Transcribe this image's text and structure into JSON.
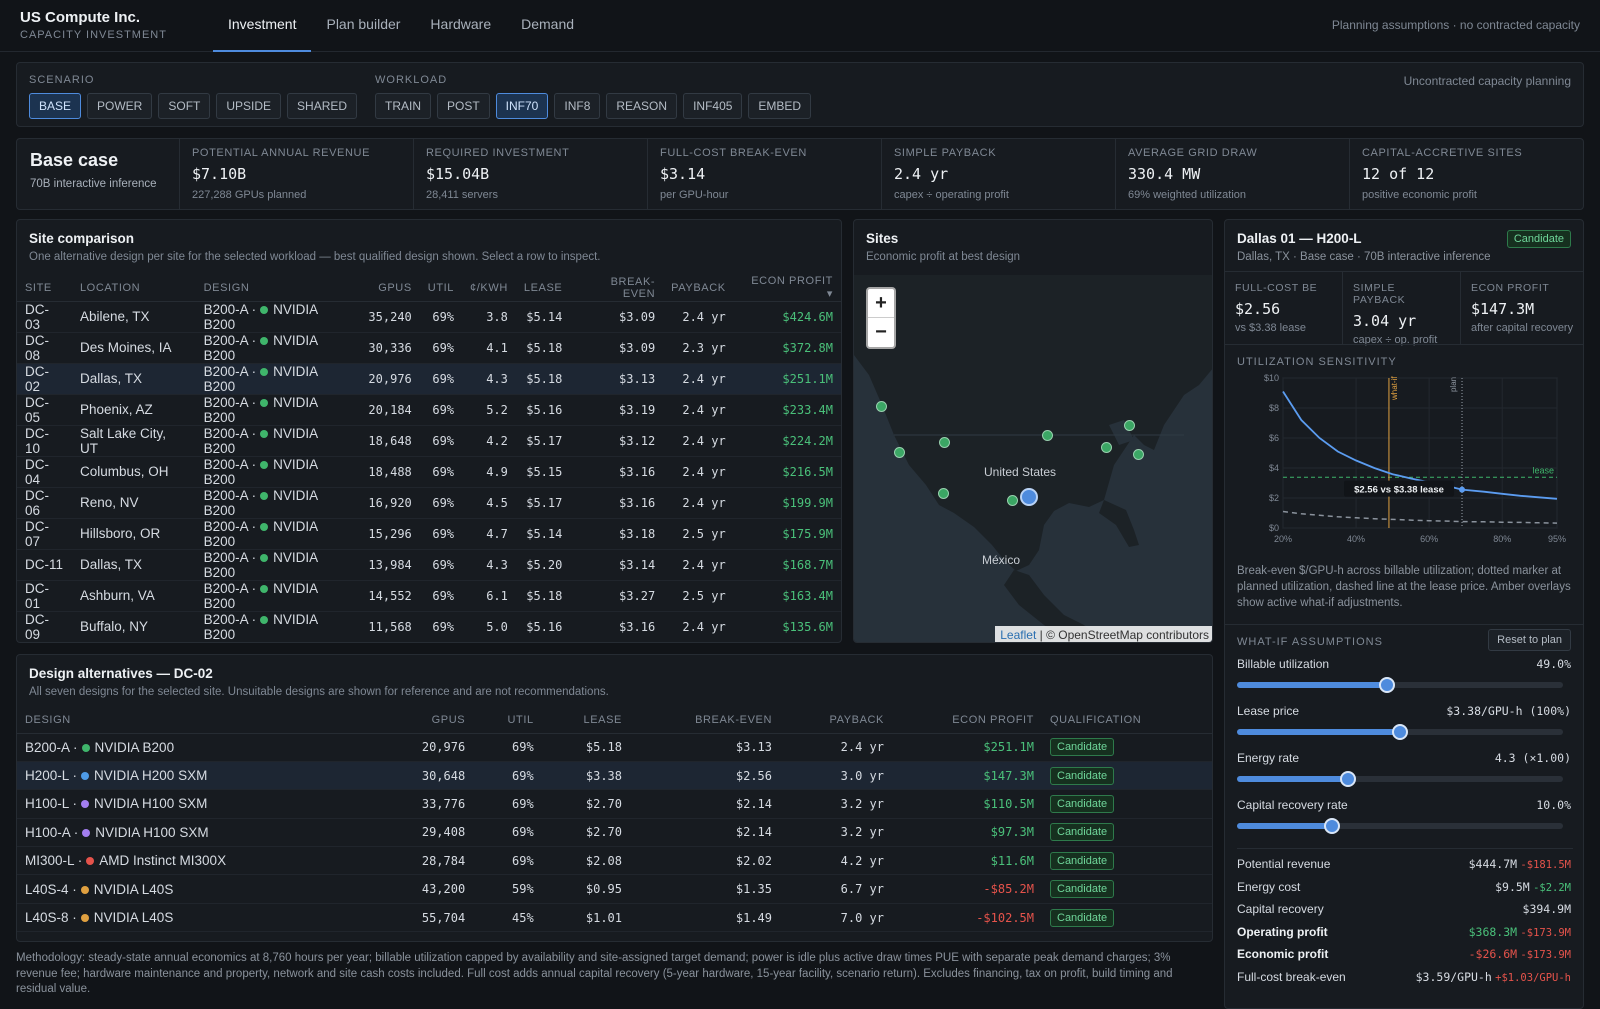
{
  "header": {
    "title": "US Compute Inc.",
    "subtitle": "CAPACITY INVESTMENT",
    "tabs": [
      "Investment",
      "Plan builder",
      "Hardware",
      "Demand"
    ],
    "note": "Planning assumptions · no contracted capacity"
  },
  "scenario": {
    "label": "SCENARIO",
    "options": [
      "BASE",
      "POWER",
      "SOFT",
      "UPSIDE",
      "SHARED"
    ],
    "selected": "BASE"
  },
  "workload": {
    "label": "WORKLOAD",
    "options": [
      "TRAIN",
      "POST",
      "INF70",
      "INF8",
      "REASON",
      "INF405",
      "EMBED"
    ],
    "selected": "INF70",
    "note": "Uncontracted capacity planning"
  },
  "summary": {
    "title": "Base case",
    "subtitle": "70B interactive inference"
  },
  "kpis": [
    {
      "label": "POTENTIAL ANNUAL REVENUE",
      "value": "$7.10B",
      "detail": "227,288 GPUs planned"
    },
    {
      "label": "REQUIRED INVESTMENT",
      "value": "$15.04B",
      "detail": "28,411 servers"
    },
    {
      "label": "FULL-COST BREAK-EVEN",
      "value": "$3.14",
      "detail": "per GPU-hour"
    },
    {
      "label": "SIMPLE PAYBACK",
      "value": "2.4 yr",
      "detail": "capex ÷ operating profit"
    },
    {
      "label": "AVERAGE GRID DRAW",
      "value": "330.4 MW",
      "detail": "69% weighted utilization"
    },
    {
      "label": "CAPITAL-ACCRETIVE SITES",
      "value": "12 of 12",
      "detail": "positive economic profit"
    }
  ],
  "sites_table": {
    "title": "Site comparison",
    "subtitle": "One alternative design per site for the selected workload — best qualified design shown. Select a row to inspect.",
    "columns": [
      "SITE",
      "LOCATION",
      "DESIGN",
      "GPUS",
      "UTIL",
      "¢/KWH",
      "LEASE",
      "BREAK-EVEN",
      "PAYBACK",
      "ECON PROFIT ▾"
    ],
    "rows": [
      {
        "site": "DC-03",
        "location": "Abilene, TX",
        "design": "B200-A ·",
        "hw": "NVIDIA B200",
        "gpus": "35,240",
        "util": "69%",
        "kwh": "3.8",
        "lease": "$5.14",
        "be": "$3.09",
        "payback": "2.4 yr",
        "profit": "$424.6M"
      },
      {
        "site": "DC-08",
        "location": "Des Moines, IA",
        "design": "B200-A ·",
        "hw": "NVIDIA B200",
        "gpus": "30,336",
        "util": "69%",
        "kwh": "4.1",
        "lease": "$5.18",
        "be": "$3.09",
        "payback": "2.3 yr",
        "profit": "$372.8M"
      },
      {
        "site": "DC-02",
        "location": "Dallas, TX",
        "design": "B200-A ·",
        "hw": "NVIDIA B200",
        "gpus": "20,976",
        "util": "69%",
        "kwh": "4.3",
        "lease": "$5.18",
        "be": "$3.13",
        "payback": "2.4 yr",
        "profit": "$251.1M"
      },
      {
        "site": "DC-05",
        "location": "Phoenix, AZ",
        "design": "B200-A ·",
        "hw": "NVIDIA B200",
        "gpus": "20,184",
        "util": "69%",
        "kwh": "5.2",
        "lease": "$5.16",
        "be": "$3.19",
        "payback": "2.4 yr",
        "profit": "$233.4M"
      },
      {
        "site": "DC-10",
        "location": "Salt Lake City, UT",
        "design": "B200-A ·",
        "hw": "NVIDIA B200",
        "gpus": "18,648",
        "util": "69%",
        "kwh": "4.2",
        "lease": "$5.17",
        "be": "$3.12",
        "payback": "2.4 yr",
        "profit": "$224.2M"
      },
      {
        "site": "DC-04",
        "location": "Columbus, OH",
        "design": "B200-A ·",
        "hw": "NVIDIA B200",
        "gpus": "18,488",
        "util": "69%",
        "kwh": "4.9",
        "lease": "$5.15",
        "be": "$3.16",
        "payback": "2.4 yr",
        "profit": "$216.5M"
      },
      {
        "site": "DC-06",
        "location": "Reno, NV",
        "design": "B200-A ·",
        "hw": "NVIDIA B200",
        "gpus": "16,920",
        "util": "69%",
        "kwh": "4.5",
        "lease": "$5.17",
        "be": "$3.16",
        "payback": "2.4 yr",
        "profit": "$199.9M"
      },
      {
        "site": "DC-07",
        "location": "Hillsboro, OR",
        "design": "B200-A ·",
        "hw": "NVIDIA B200",
        "gpus": "15,296",
        "util": "69%",
        "kwh": "4.7",
        "lease": "$5.14",
        "be": "$3.18",
        "payback": "2.5 yr",
        "profit": "$175.9M"
      },
      {
        "site": "DC-11",
        "location": "Dallas, TX",
        "design": "B200-A ·",
        "hw": "NVIDIA B200",
        "gpus": "13,984",
        "util": "69%",
        "kwh": "4.3",
        "lease": "$5.20",
        "be": "$3.14",
        "payback": "2.4 yr",
        "profit": "$168.7M"
      },
      {
        "site": "DC-01",
        "location": "Ashburn, VA",
        "design": "B200-A ·",
        "hw": "NVIDIA B200",
        "gpus": "14,552",
        "util": "69%",
        "kwh": "6.1",
        "lease": "$5.18",
        "be": "$3.27",
        "payback": "2.5 yr",
        "profit": "$163.4M"
      },
      {
        "site": "DC-09",
        "location": "Buffalo, NY",
        "design": "B200-A ·",
        "hw": "NVIDIA B200",
        "gpus": "11,568",
        "util": "69%",
        "kwh": "5.0",
        "lease": "$5.16",
        "be": "$3.16",
        "payback": "2.4 yr",
        "profit": "$135.6M"
      },
      {
        "site": "DC-12",
        "location": "Columbus, OH",
        "design": "B200-A ·",
        "hw": "NVIDIA B200",
        "gpus": "11,096",
        "util": "69%",
        "kwh": "4.9",
        "lease": "$5.23",
        "be": "$3.16",
        "payback": "2.4 yr",
        "profit": "$134.4M"
      }
    ]
  },
  "map": {
    "title": "Sites",
    "subtitle": "Economic profit at best design",
    "label_us": "United States",
    "label_mx": "México",
    "zoom_in": "+",
    "zoom_out": "−",
    "attr_leaflet": "Leaflet",
    "attr_rest": "| © OpenStreetMap contributors"
  },
  "alternatives": {
    "title": "Design alternatives — DC-02",
    "subtitle": "All seven designs for the selected site. Unsuitable designs are shown for reference and are not recommendations.",
    "columns": [
      "DESIGN",
      "GPUS",
      "UTIL",
      "LEASE",
      "BREAK-EVEN",
      "PAYBACK",
      "ECON PROFIT",
      "QUALIFICATION"
    ],
    "rows": [
      {
        "design": "B200-A ·",
        "hw": "NVIDIA B200",
        "dot": "#3fb56b",
        "gpus": "20,976",
        "util": "69%",
        "lease": "$5.18",
        "be": "$3.13",
        "payback": "2.4 yr",
        "profit": "$251.1M",
        "neg": false,
        "q": "Candidate"
      },
      {
        "design": "H200-L ·",
        "hw": "NVIDIA H200 SXM",
        "dot": "#4e9be8",
        "gpus": "30,648",
        "util": "69%",
        "lease": "$3.38",
        "be": "$2.56",
        "payback": "3.0 yr",
        "profit": "$147.3M",
        "neg": false,
        "q": "Candidate"
      },
      {
        "design": "H100-L ·",
        "hw": "NVIDIA H100 SXM",
        "dot": "#a37ef0",
        "gpus": "33,776",
        "util": "69%",
        "lease": "$2.70",
        "be": "$2.14",
        "payback": "3.2 yr",
        "profit": "$110.5M",
        "neg": false,
        "q": "Candidate"
      },
      {
        "design": "H100-A ·",
        "hw": "NVIDIA H100 SXM",
        "dot": "#a37ef0",
        "gpus": "29,408",
        "util": "69%",
        "lease": "$2.70",
        "be": "$2.14",
        "payback": "3.2 yr",
        "profit": "$97.3M",
        "neg": false,
        "q": "Candidate"
      },
      {
        "design": "MI300-L ·",
        "hw": "AMD Instinct MI300X",
        "dot": "#e5534b",
        "gpus": "28,784",
        "util": "69%",
        "lease": "$2.08",
        "be": "$2.02",
        "payback": "4.2 yr",
        "profit": "$11.6M",
        "neg": false,
        "q": "Candidate"
      },
      {
        "design": "L40S-4 ·",
        "hw": "NVIDIA L40S",
        "dot": "#e0a040",
        "gpus": "43,200",
        "util": "59%",
        "lease": "$0.95",
        "be": "$1.35",
        "payback": "6.7 yr",
        "profit": "-$85.2M",
        "neg": true,
        "q": "Candidate"
      },
      {
        "design": "L40S-8 ·",
        "hw": "NVIDIA L40S",
        "dot": "#e0a040",
        "gpus": "55,704",
        "util": "45%",
        "lease": "$1.01",
        "be": "$1.49",
        "payback": "7.0 yr",
        "profit": "-$102.5M",
        "neg": true,
        "q": "Candidate"
      }
    ]
  },
  "methodology": "Methodology: steady-state annual economics at 8,760 hours per year; billable utilization capped by availability and site-assigned target demand; power is idle plus active draw times PUE with separate peak demand charges; 3% revenue fee; hardware maintenance and property, network and site cash costs included. Full cost adds annual capital recovery (5-year hardware, 15-year facility, scenario return). Excludes financing, tax on profit, build timing and residual value.",
  "detail": {
    "title": "Dallas 01 — H200-L",
    "subtitle": "Dallas, TX · Base case · 70B interactive inference",
    "badge": "Candidate",
    "metrics": [
      {
        "label": "FULL-COST BE",
        "value": "$2.56",
        "detail": "vs $3.38 lease"
      },
      {
        "label": "SIMPLE PAYBACK",
        "value": "3.04 yr",
        "detail": "capex ÷ op. profit"
      },
      {
        "label": "ECON PROFIT",
        "value": "$147.3M",
        "detail": "after capital recovery"
      }
    ],
    "sens_label": "UTILIZATION SENSITIVITY",
    "sens_caption": "Break-even $/GPU-h across billable utilization; dotted marker at planned utilization, dashed line at the lease price. Amber overlays show active what-if adjustments.",
    "whatif_label": "WHAT-IF ASSUMPTIONS",
    "reset": "Reset to plan",
    "sliders": [
      {
        "label": "Billable utilization",
        "value": "49.0%",
        "pos": 0.46
      },
      {
        "label": "Lease price",
        "value": "$3.38/GPU-h (100%)",
        "pos": 0.5
      },
      {
        "label": "Energy rate",
        "value": "4.3 (×1.00)",
        "pos": 0.34
      },
      {
        "label": "Capital recovery rate",
        "value": "10.0%",
        "pos": 0.29
      }
    ],
    "results": [
      {
        "label": "Potential revenue",
        "value": "$444.7M",
        "delta": "-$181.5M",
        "bold": false,
        "vcolor": "",
        "dcolor": "red"
      },
      {
        "label": "Energy cost",
        "value": "$9.5M",
        "delta": "-$2.2M",
        "bold": false,
        "vcolor": "",
        "dcolor": "green"
      },
      {
        "label": "Capital recovery",
        "value": "$394.9M",
        "delta": "",
        "bold": false,
        "vcolor": "",
        "dcolor": ""
      },
      {
        "label": "Operating profit",
        "value": "$368.3M",
        "delta": "-$173.9M",
        "bold": true,
        "vcolor": "green",
        "dcolor": "red"
      },
      {
        "label": "Economic profit",
        "value": "-$26.6M",
        "delta": "-$173.9M",
        "bold": true,
        "vcolor": "red",
        "dcolor": "red"
      },
      {
        "label": "Full-cost break-even",
        "value": "$3.59/GPU-h",
        "delta": "+$1.03/GPU-h",
        "bold": false,
        "vcolor": "",
        "dcolor": "red"
      }
    ]
  },
  "chart_data": {
    "type": "line",
    "x": [
      0.2,
      0.25,
      0.3,
      0.35,
      0.4,
      0.45,
      0.5,
      0.55,
      0.6,
      0.65,
      0.69,
      0.75,
      0.8,
      0.85,
      0.9,
      0.95
    ],
    "series": [
      {
        "values": [
          9.1,
          7.2,
          6.0,
          5.1,
          4.5,
          4.0,
          3.59,
          3.3,
          3.05,
          2.8,
          2.56,
          2.42,
          2.28,
          2.15,
          2.05,
          1.95
        ]
      },
      {
        "values": [
          1.1,
          0.95,
          0.85,
          0.75,
          0.68,
          0.62,
          0.57,
          0.53,
          0.49,
          0.46,
          0.43,
          0.41,
          0.39,
          0.37,
          0.35,
          0.33
        ]
      }
    ],
    "lease": 3.38,
    "lease_label": "lease",
    "planned_util": 0.69,
    "whatif_util": 0.49,
    "marker_label": "$2.56 vs $3.38 lease",
    "marker_label_whatif": "what-if",
    "marker_label_plan": "plan",
    "yticks": [
      "$0",
      "$2",
      "$4",
      "$6",
      "$8",
      "$10"
    ],
    "xticks": [
      "20%",
      "40%",
      "60%",
      "80%",
      "95%"
    ],
    "ylim": [
      0,
      10
    ],
    "xlim": [
      0.2,
      0.95
    ],
    "colors": {
      "main": "#5b9cf0",
      "other": "#8a929c",
      "lease": "#3fb56b",
      "whatif": "#e0a040"
    }
  }
}
